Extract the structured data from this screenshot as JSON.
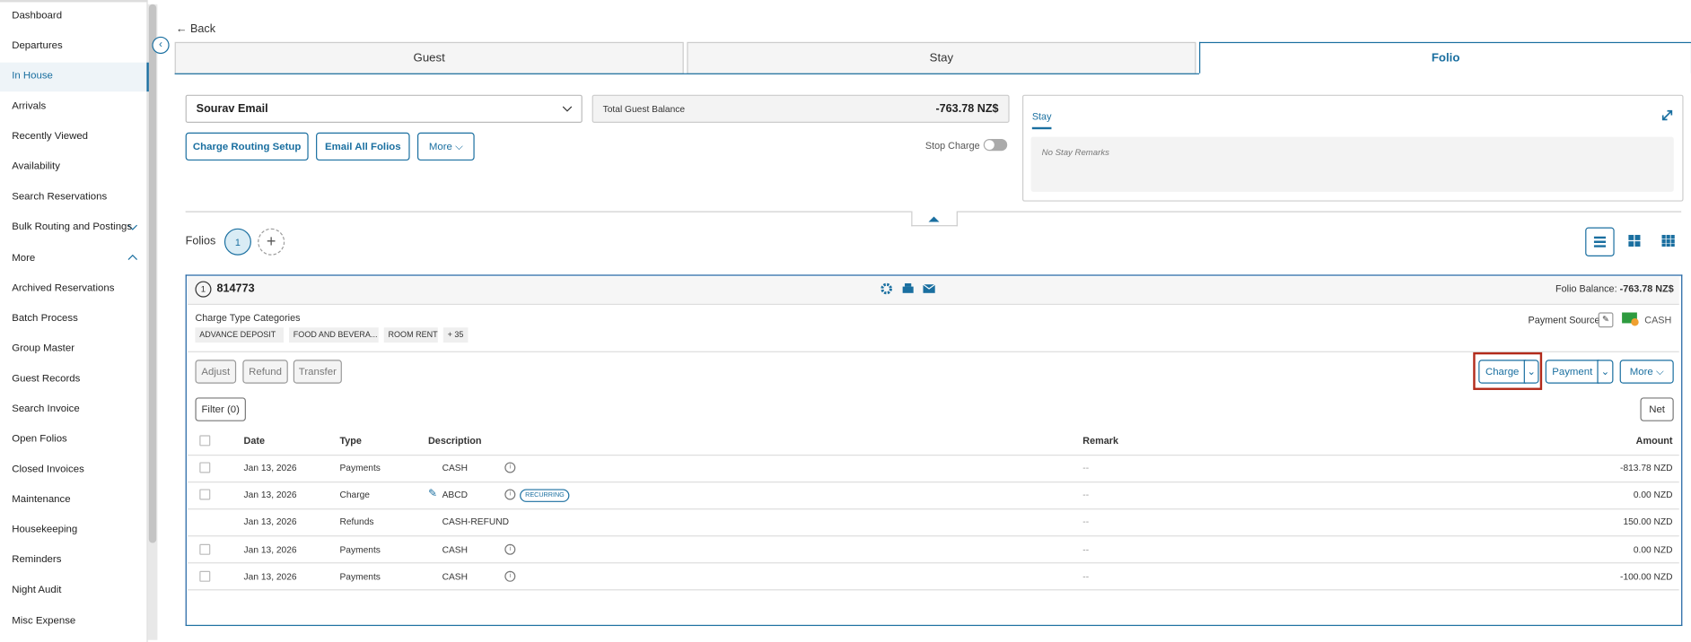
{
  "sidebar": {
    "items": [
      "Dashboard",
      "Departures",
      "In House",
      "Arrivals",
      "Recently Viewed",
      "Availability",
      "Search Reservations",
      "Bulk Routing and Postings",
      "More",
      "Archived Reservations",
      "Batch Process",
      "Group Master",
      "Guest Records",
      "Search Invoice",
      "Open Folios",
      "Closed Invoices",
      "Maintenance",
      "Housekeeping",
      "Reminders",
      "Night Audit",
      "Misc Expense"
    ],
    "active": "In House"
  },
  "back": "Back",
  "tabs": [
    "Guest",
    "Stay",
    "Folio"
  ],
  "guest_select": "Sourav Email",
  "balance": {
    "label": "Total Guest Balance",
    "value": "-763.78 NZ$"
  },
  "buttons": [
    "Charge Routing Setup",
    "Email All Folios",
    "More"
  ],
  "stop_charge": "Stop Charge",
  "remarks": {
    "tab": "Stay",
    "placeholder": "No Stay Remarks"
  },
  "folios": {
    "label": "Folios",
    "count": "1"
  },
  "folio": {
    "number": "1",
    "id": "814773",
    "balance_label": "Folio Balance:",
    "balance": "-763.78 NZ$",
    "charge_type_label": "Charge Type Categories",
    "chips": [
      "ADVANCE DEPOSIT",
      "FOOD AND BEVERA...",
      "ROOM RENT",
      "+ 35"
    ],
    "payment_source_label": "Payment Source",
    "payment_source": "CASH",
    "actions": [
      "Adjust",
      "Refund",
      "Transfer"
    ],
    "right_actions": [
      "Charge",
      "Payment",
      "More"
    ],
    "filter": "Filter (0)",
    "net": "Net"
  },
  "table": {
    "columns": [
      "Date",
      "Type",
      "Description",
      "Remark",
      "Amount"
    ],
    "rows": [
      {
        "date": "Jan 13, 2026",
        "type": "Payments",
        "description": "CASH",
        "remark": "--",
        "amount": "-813.78 NZD"
      },
      {
        "date": "Jan 13, 2026",
        "type": "Charge",
        "description": "ABCD",
        "badge": "RECURRING",
        "remark": "--",
        "amount": "0.00 NZD"
      },
      {
        "date": "Jan 13, 2026",
        "type": "Refunds",
        "description": "CASH-REFUND",
        "remark": "--",
        "amount": "150.00 NZD"
      },
      {
        "date": "Jan 13, 2026",
        "type": "Payments",
        "description": "CASH",
        "remark": "--",
        "amount": "0.00 NZD"
      },
      {
        "date": "Jan 13, 2026",
        "type": "Payments",
        "description": "CASH",
        "remark": "--",
        "amount": "-100.00 NZD"
      }
    ]
  }
}
